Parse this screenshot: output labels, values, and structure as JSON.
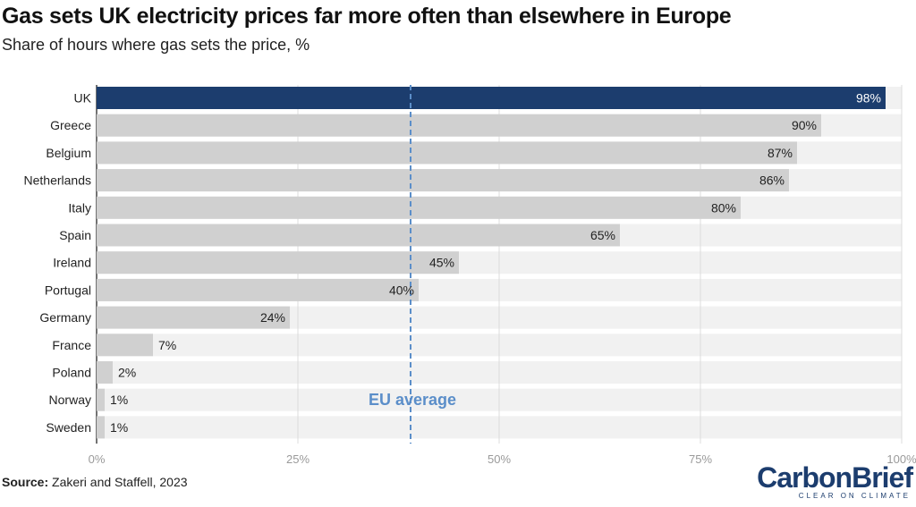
{
  "title": "Gas sets UK electricity prices far more often than elsewhere in Europe",
  "subtitle": "Share of hours where gas sets the price, %",
  "source_label": "Source:",
  "source_text": "Zakeri and Staffell, 2023",
  "logo": {
    "word_a": "Carbon",
    "word_b": "Brief",
    "tagline": "CLEAR ON CLIMATE"
  },
  "colors": {
    "highlight": "#1c3d6e",
    "bar": "#d0d0d0",
    "track": "#f1f1f1",
    "reference": "#5b8ec9"
  },
  "chart_data": {
    "type": "bar",
    "orientation": "horizontal",
    "categories": [
      "UK",
      "Greece",
      "Belgium",
      "Netherlands",
      "Italy",
      "Spain",
      "Ireland",
      "Portugal",
      "Germany",
      "France",
      "Poland",
      "Norway",
      "Sweden"
    ],
    "values": [
      98,
      90,
      87,
      86,
      80,
      65,
      45,
      40,
      24,
      7,
      2,
      1,
      1
    ],
    "value_labels": [
      "98%",
      "90%",
      "87%",
      "86%",
      "80%",
      "65%",
      "45%",
      "40%",
      "24%",
      "7%",
      "2%",
      "1%",
      "1%"
    ],
    "highlight_category": "UK",
    "xlim": [
      0,
      100
    ],
    "x_ticks": [
      0,
      25,
      50,
      75,
      100
    ],
    "x_tick_labels": [
      "0%",
      "25%",
      "50%",
      "75%",
      "100%"
    ],
    "grid": true,
    "reference_line": {
      "value": 39,
      "label": "EU average",
      "style": "dashed"
    }
  }
}
